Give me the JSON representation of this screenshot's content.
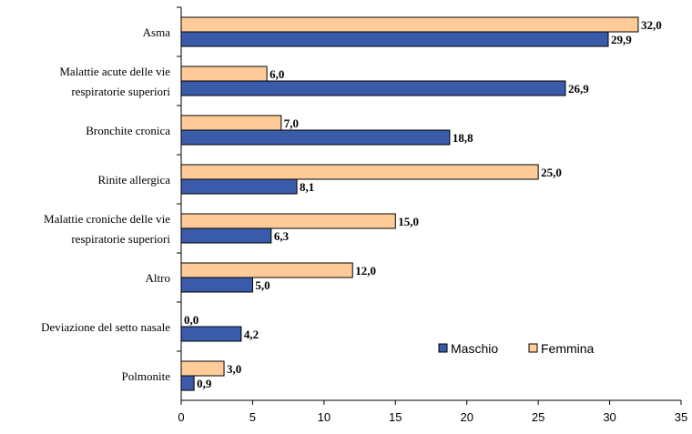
{
  "chart_data": {
    "type": "bar",
    "orientation": "horizontal",
    "categories": [
      [
        "Asma"
      ],
      [
        "Malattie acute delle vie",
        "respiratorie superiori"
      ],
      [
        "Bronchite cronica"
      ],
      [
        "Rinite allergica"
      ],
      [
        "Malattie croniche delle vie",
        "respiratorie superiori"
      ],
      [
        "Altro"
      ],
      [
        "Deviazione del setto nasale"
      ],
      [
        "Polmonite"
      ]
    ],
    "series": [
      {
        "name": "Maschio",
        "color": "#3A5BA9",
        "values": [
          29.9,
          26.9,
          18.8,
          8.1,
          6.3,
          5.0,
          4.2,
          0.9
        ],
        "labels": [
          "29,9",
          "26,9",
          "18,8",
          "8,1",
          "6,3",
          "5,0",
          "4,2",
          "0,9"
        ]
      },
      {
        "name": "Femmina",
        "color": "#FFCC99",
        "values": [
          32.0,
          6.0,
          7.0,
          25.0,
          15.0,
          12.0,
          0.0,
          3.0
        ],
        "labels": [
          "32,0",
          "6,0",
          "7,0",
          "25,0",
          "15,0",
          "12,0",
          "0,0",
          "3,0"
        ]
      }
    ],
    "xlim": [
      0,
      35
    ],
    "xticks": [
      0,
      5,
      10,
      15,
      20,
      25,
      30,
      35
    ],
    "title": "",
    "xlabel": "",
    "ylabel": "",
    "grid": false,
    "legend": {
      "placement": "bottom-right",
      "entries": [
        "Maschio",
        "Femmina"
      ]
    }
  }
}
